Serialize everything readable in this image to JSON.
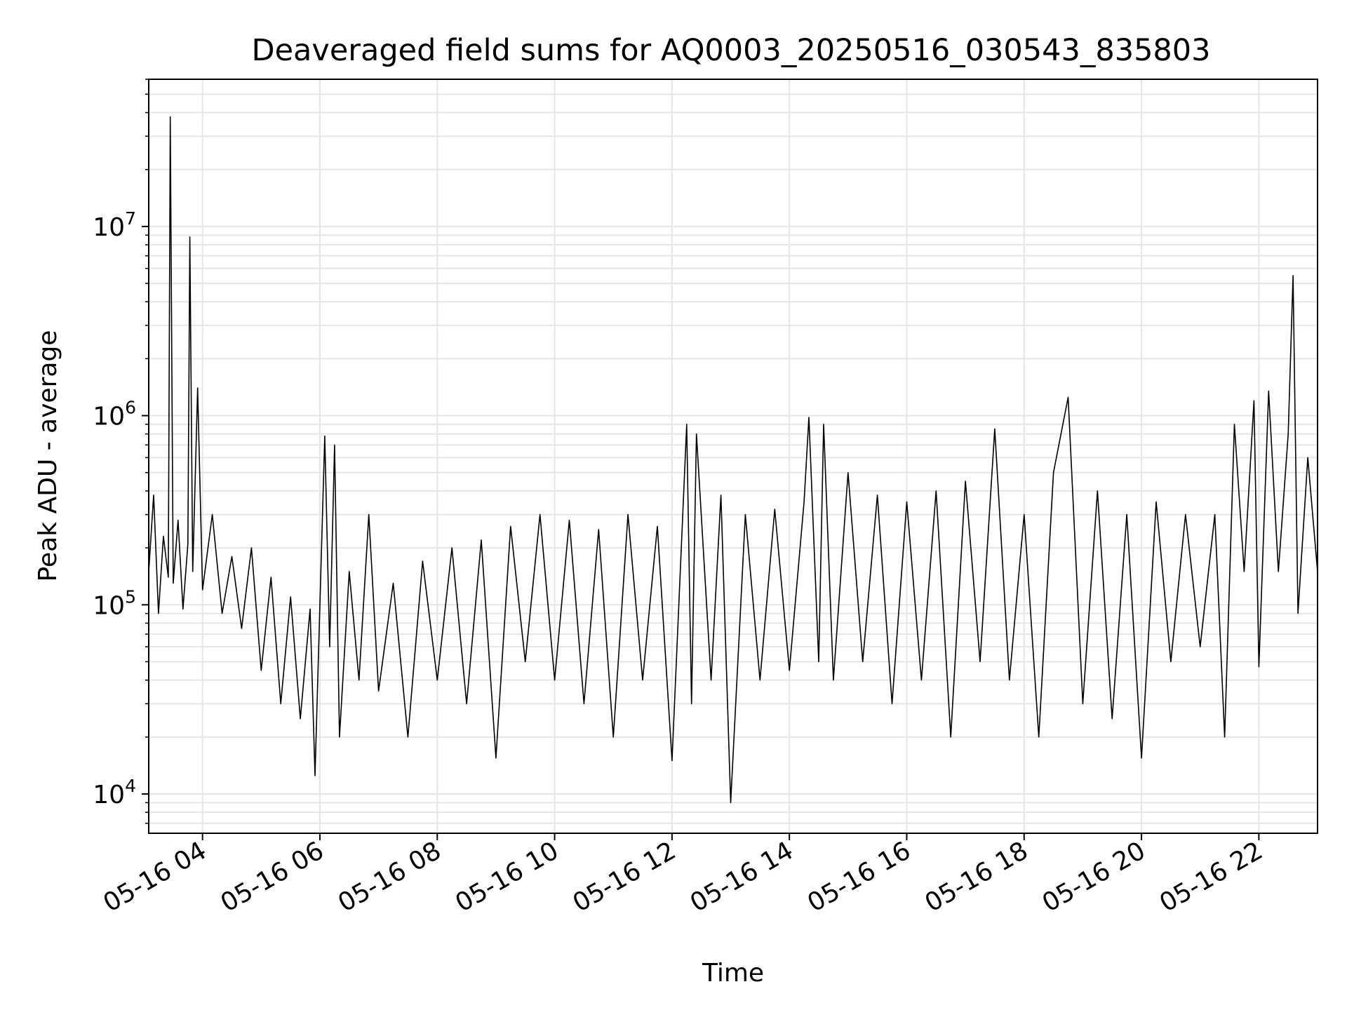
{
  "chart_data": {
    "type": "line",
    "title": "Deaveraged field sums for AQ0003_20250516_030543_835803",
    "xlabel": "Time",
    "ylabel": "Peak ADU - average",
    "x_scale": "time",
    "y_scale": "log",
    "xlim": [
      "2025-05-16 03:05",
      "2025-05-16 23:00"
    ],
    "ylim": [
      6200,
      60000000
    ],
    "grid": true,
    "legend": "none",
    "line_color": "#000000",
    "grid_color": "#e6e6e6",
    "x_ticks": [
      {
        "t": "2025-05-16 04:00",
        "label": "05-16 04"
      },
      {
        "t": "2025-05-16 06:00",
        "label": "05-16 06"
      },
      {
        "t": "2025-05-16 08:00",
        "label": "05-16 08"
      },
      {
        "t": "2025-05-16 10:00",
        "label": "05-16 10"
      },
      {
        "t": "2025-05-16 12:00",
        "label": "05-16 12"
      },
      {
        "t": "2025-05-16 14:00",
        "label": "05-16 14"
      },
      {
        "t": "2025-05-16 16:00",
        "label": "05-16 16"
      },
      {
        "t": "2025-05-16 18:00",
        "label": "05-16 18"
      },
      {
        "t": "2025-05-16 20:00",
        "label": "05-16 20"
      },
      {
        "t": "2025-05-16 22:00",
        "label": "05-16 22"
      }
    ],
    "y_ticks": [
      {
        "value": 10000,
        "base": "10",
        "exp": "4"
      },
      {
        "value": 100000,
        "base": "10",
        "exp": "5"
      },
      {
        "value": 1000000,
        "base": "10",
        "exp": "6"
      },
      {
        "value": 10000000,
        "base": "10",
        "exp": "7"
      }
    ],
    "series": [
      {
        "points": [
          [
            "2025-05-16 03:05",
            150000
          ],
          [
            "2025-05-16 03:10",
            380000
          ],
          [
            "2025-05-16 03:15",
            90000
          ],
          [
            "2025-05-16 03:20",
            230000
          ],
          [
            "2025-05-16 03:25",
            140000
          ],
          [
            "2025-05-16 03:27",
            38000000
          ],
          [
            "2025-05-16 03:30",
            130000
          ],
          [
            "2025-05-16 03:35",
            280000
          ],
          [
            "2025-05-16 03:40",
            95000
          ],
          [
            "2025-05-16 03:45",
            210000
          ],
          [
            "2025-05-16 03:47",
            8800000
          ],
          [
            "2025-05-16 03:50",
            150000
          ],
          [
            "2025-05-16 03:55",
            1400000
          ],
          [
            "2025-05-16 04:00",
            120000
          ],
          [
            "2025-05-16 04:10",
            300000
          ],
          [
            "2025-05-16 04:20",
            90000
          ],
          [
            "2025-05-16 04:30",
            180000
          ],
          [
            "2025-05-16 04:40",
            75000
          ],
          [
            "2025-05-16 04:50",
            200000
          ],
          [
            "2025-05-16 05:00",
            45000
          ],
          [
            "2025-05-16 05:10",
            140000
          ],
          [
            "2025-05-16 05:20",
            30000
          ],
          [
            "2025-05-16 05:30",
            110000
          ],
          [
            "2025-05-16 05:40",
            25000
          ],
          [
            "2025-05-16 05:50",
            95000
          ],
          [
            "2025-05-16 05:55",
            12500
          ],
          [
            "2025-05-16 06:05",
            780000
          ],
          [
            "2025-05-16 06:10",
            60000
          ],
          [
            "2025-05-16 06:15",
            700000
          ],
          [
            "2025-05-16 06:20",
            20000
          ],
          [
            "2025-05-16 06:30",
            150000
          ],
          [
            "2025-05-16 06:40",
            40000
          ],
          [
            "2025-05-16 06:50",
            300000
          ],
          [
            "2025-05-16 07:00",
            35000
          ],
          [
            "2025-05-16 07:15",
            130000
          ],
          [
            "2025-05-16 07:30",
            20000
          ],
          [
            "2025-05-16 07:45",
            170000
          ],
          [
            "2025-05-16 08:00",
            40000
          ],
          [
            "2025-05-16 08:15",
            200000
          ],
          [
            "2025-05-16 08:30",
            30000
          ],
          [
            "2025-05-16 08:45",
            220000
          ],
          [
            "2025-05-16 09:00",
            15500
          ],
          [
            "2025-05-16 09:15",
            260000
          ],
          [
            "2025-05-16 09:30",
            50000
          ],
          [
            "2025-05-16 09:45",
            300000
          ],
          [
            "2025-05-16 10:00",
            40000
          ],
          [
            "2025-05-16 10:15",
            280000
          ],
          [
            "2025-05-16 10:30",
            30000
          ],
          [
            "2025-05-16 10:45",
            250000
          ],
          [
            "2025-05-16 11:00",
            20000
          ],
          [
            "2025-05-16 11:15",
            300000
          ],
          [
            "2025-05-16 11:30",
            40000
          ],
          [
            "2025-05-16 11:45",
            260000
          ],
          [
            "2025-05-16 12:00",
            15000
          ],
          [
            "2025-05-16 12:15",
            900000
          ],
          [
            "2025-05-16 12:20",
            30000
          ],
          [
            "2025-05-16 12:25",
            800000
          ],
          [
            "2025-05-16 12:40",
            40000
          ],
          [
            "2025-05-16 12:50",
            380000
          ],
          [
            "2025-05-16 13:00",
            9000
          ],
          [
            "2025-05-16 13:15",
            300000
          ],
          [
            "2025-05-16 13:30",
            40000
          ],
          [
            "2025-05-16 13:45",
            320000
          ],
          [
            "2025-05-16 14:00",
            45000
          ],
          [
            "2025-05-16 14:15",
            350000
          ],
          [
            "2025-05-16 14:20",
            980000
          ],
          [
            "2025-05-16 14:30",
            50000
          ],
          [
            "2025-05-16 14:35",
            900000
          ],
          [
            "2025-05-16 14:45",
            40000
          ],
          [
            "2025-05-16 15:00",
            500000
          ],
          [
            "2025-05-16 15:15",
            50000
          ],
          [
            "2025-05-16 15:30",
            380000
          ],
          [
            "2025-05-16 15:45",
            30000
          ],
          [
            "2025-05-16 16:00",
            350000
          ],
          [
            "2025-05-16 16:15",
            40000
          ],
          [
            "2025-05-16 16:30",
            400000
          ],
          [
            "2025-05-16 16:45",
            20000
          ],
          [
            "2025-05-16 17:00",
            450000
          ],
          [
            "2025-05-16 17:15",
            50000
          ],
          [
            "2025-05-16 17:30",
            850000
          ],
          [
            "2025-05-16 17:45",
            40000
          ],
          [
            "2025-05-16 18:00",
            300000
          ],
          [
            "2025-05-16 18:15",
            20000
          ],
          [
            "2025-05-16 18:30",
            500000
          ],
          [
            "2025-05-16 18:45",
            1250000
          ],
          [
            "2025-05-16 19:00",
            30000
          ],
          [
            "2025-05-16 19:15",
            400000
          ],
          [
            "2025-05-16 19:30",
            25000
          ],
          [
            "2025-05-16 19:45",
            300000
          ],
          [
            "2025-05-16 20:00",
            15500
          ],
          [
            "2025-05-16 20:15",
            350000
          ],
          [
            "2025-05-16 20:30",
            50000
          ],
          [
            "2025-05-16 20:45",
            300000
          ],
          [
            "2025-05-16 21:00",
            60000
          ],
          [
            "2025-05-16 21:15",
            300000
          ],
          [
            "2025-05-16 21:25",
            20000
          ],
          [
            "2025-05-16 21:35",
            900000
          ],
          [
            "2025-05-16 21:45",
            150000
          ],
          [
            "2025-05-16 21:55",
            1200000
          ],
          [
            "2025-05-16 22:00",
            47000
          ],
          [
            "2025-05-16 22:10",
            1350000
          ],
          [
            "2025-05-16 22:20",
            150000
          ],
          [
            "2025-05-16 22:30",
            800000
          ],
          [
            "2025-05-16 22:35",
            5500000
          ],
          [
            "2025-05-16 22:40",
            90000
          ],
          [
            "2025-05-16 22:50",
            600000
          ],
          [
            "2025-05-16 23:00",
            150000
          ]
        ]
      }
    ]
  }
}
